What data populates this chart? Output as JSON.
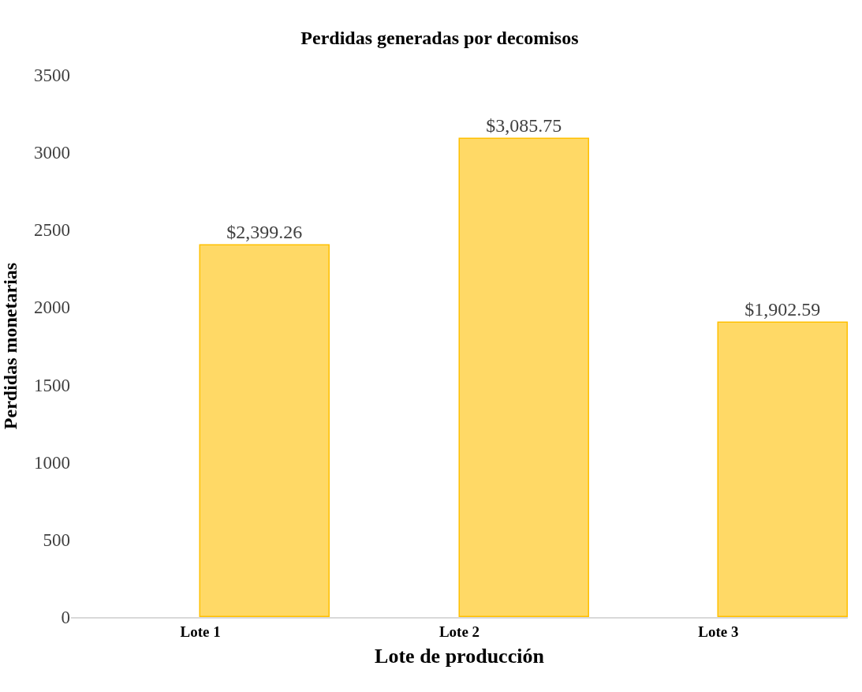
{
  "chart_data": {
    "type": "bar",
    "title": "Perdidas generadas por decomisos",
    "xlabel": "Lote de producción",
    "ylabel": "Perdidas monetarias",
    "categories": [
      "Lote 1",
      "Lote 2",
      "Lote 3"
    ],
    "series": [
      {
        "color": "#ffd966",
        "values": [
          2399.26,
          3085.75,
          1902.59
        ],
        "value_labels": [
          "$2,399.26",
          "$3,085.75",
          "$1,902.59"
        ]
      }
    ],
    "ylim": [
      0,
      3500
    ],
    "yticks": [
      0,
      500,
      1000,
      1500,
      2000,
      2500,
      3000,
      3500
    ]
  }
}
